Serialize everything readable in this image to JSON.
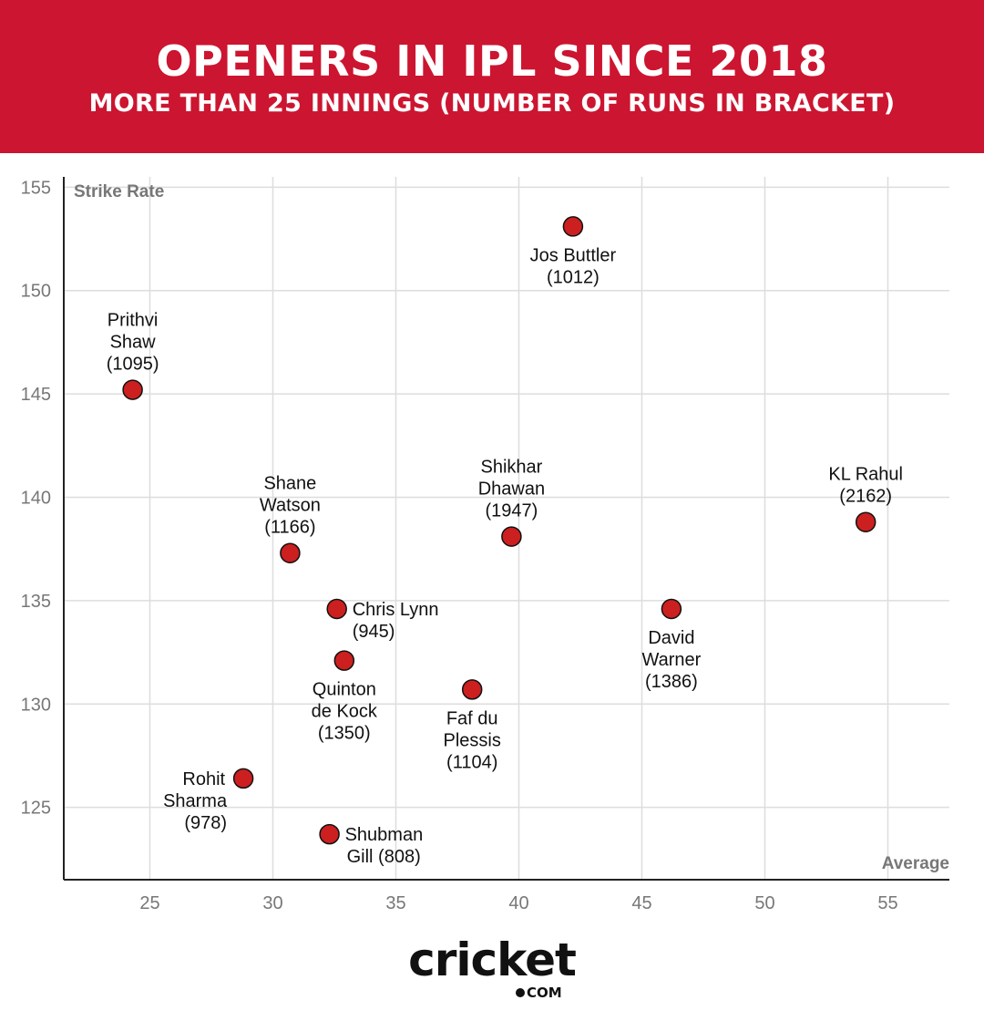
{
  "header": {
    "title": "OPENERS IN IPL SINCE 2018",
    "subtitle": "MORE THAN 25 INNINGS (NUMBER OF RUNS IN BRACKET)",
    "background": "#cc1530"
  },
  "chart_data": {
    "type": "scatter",
    "xlabel": "Average",
    "ylabel": "Strike Rate",
    "xlim": [
      21.5,
      57.5
    ],
    "ylim": [
      121.5,
      155.5
    ],
    "xticks": [
      25,
      30,
      35,
      40,
      45,
      50,
      55
    ],
    "yticks": [
      125,
      130,
      135,
      140,
      145,
      150,
      155
    ],
    "grid": true,
    "point_color": "#cc1f1f",
    "points": [
      {
        "name": "Jos Buttler",
        "label_lines": [
          "Jos Buttler",
          "(1012)"
        ],
        "runs": 1012,
        "x": 42.2,
        "y": 153.1,
        "pos": "below"
      },
      {
        "name": "Prithvi Shaw",
        "label_lines": [
          "Prithvi",
          "Shaw",
          "(1095)"
        ],
        "runs": 1095,
        "x": 24.3,
        "y": 145.2,
        "pos": "above"
      },
      {
        "name": "Shane Watson",
        "label_lines": [
          "Shane",
          "Watson",
          "(1166)"
        ],
        "runs": 1166,
        "x": 30.7,
        "y": 137.3,
        "pos": "above"
      },
      {
        "name": "Shikhar Dhawan",
        "label_lines": [
          "Shikhar",
          "Dhawan",
          "(1947)"
        ],
        "runs": 1947,
        "x": 39.7,
        "y": 138.1,
        "pos": "above"
      },
      {
        "name": "KL Rahul",
        "label_lines": [
          "KL Rahul",
          "(2162)"
        ],
        "runs": 2162,
        "x": 54.1,
        "y": 138.8,
        "pos": "above"
      },
      {
        "name": "Chris Lynn",
        "label_lines": [
          "Chris Lynn",
          "(945)"
        ],
        "runs": 945,
        "x": 32.6,
        "y": 134.6,
        "pos": "right"
      },
      {
        "name": "David Warner",
        "label_lines": [
          "David",
          "Warner",
          "(1386)"
        ],
        "runs": 1386,
        "x": 46.2,
        "y": 134.6,
        "pos": "below"
      },
      {
        "name": "Quinton de Kock",
        "label_lines": [
          "Quinton",
          "de Kock",
          "(1350)"
        ],
        "runs": 1350,
        "x": 32.9,
        "y": 132.1,
        "pos": "below"
      },
      {
        "name": "Faf du Plessis",
        "label_lines": [
          "Faf du",
          "Plessis",
          "(1104)"
        ],
        "runs": 1104,
        "x": 38.1,
        "y": 130.7,
        "pos": "below"
      },
      {
        "name": "Rohit Sharma",
        "label_lines": [
          "Rohit",
          "Sharma",
          "(978)"
        ],
        "runs": 978,
        "x": 28.8,
        "y": 126.4,
        "pos": "left"
      },
      {
        "name": "Shubman Gill",
        "label_lines": [
          "Shubman",
          "Gill (808)"
        ],
        "runs": 808,
        "x": 32.3,
        "y": 123.7,
        "pos": "right"
      }
    ]
  },
  "footer": {
    "logo_text": "cricket",
    "logo_suffix": "COM"
  }
}
